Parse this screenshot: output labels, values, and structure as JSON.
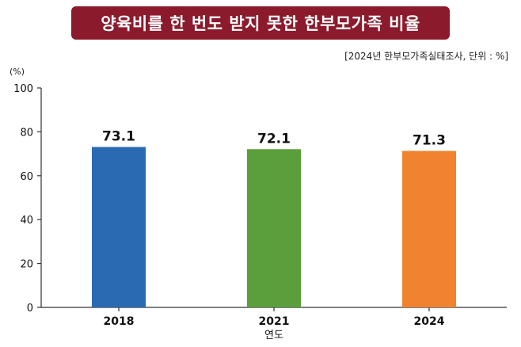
{
  "header": {
    "title": "양육비를 한 번도 받지 못한 한부모가족 비율",
    "source_note": "[2024년 한부모가족실태조사, 단위 : %]",
    "unit_label": "(%)"
  },
  "chart_data": {
    "type": "bar",
    "title": "양육비를 한 번도 받지 못한 한부모가족 비율",
    "categories": [
      "2018",
      "2021",
      "2024"
    ],
    "values": [
      73.1,
      72.1,
      71.3
    ],
    "value_labels": [
      "73.1",
      "72.1",
      "71.3"
    ],
    "colors": [
      "#2a6ab3",
      "#5a9f3c",
      "#f08230"
    ],
    "xlabel": "연도",
    "ylabel": "(%)",
    "ylim": [
      0,
      100
    ],
    "yticks": [
      0,
      20,
      40,
      60,
      80,
      100
    ],
    "grid": false
  }
}
